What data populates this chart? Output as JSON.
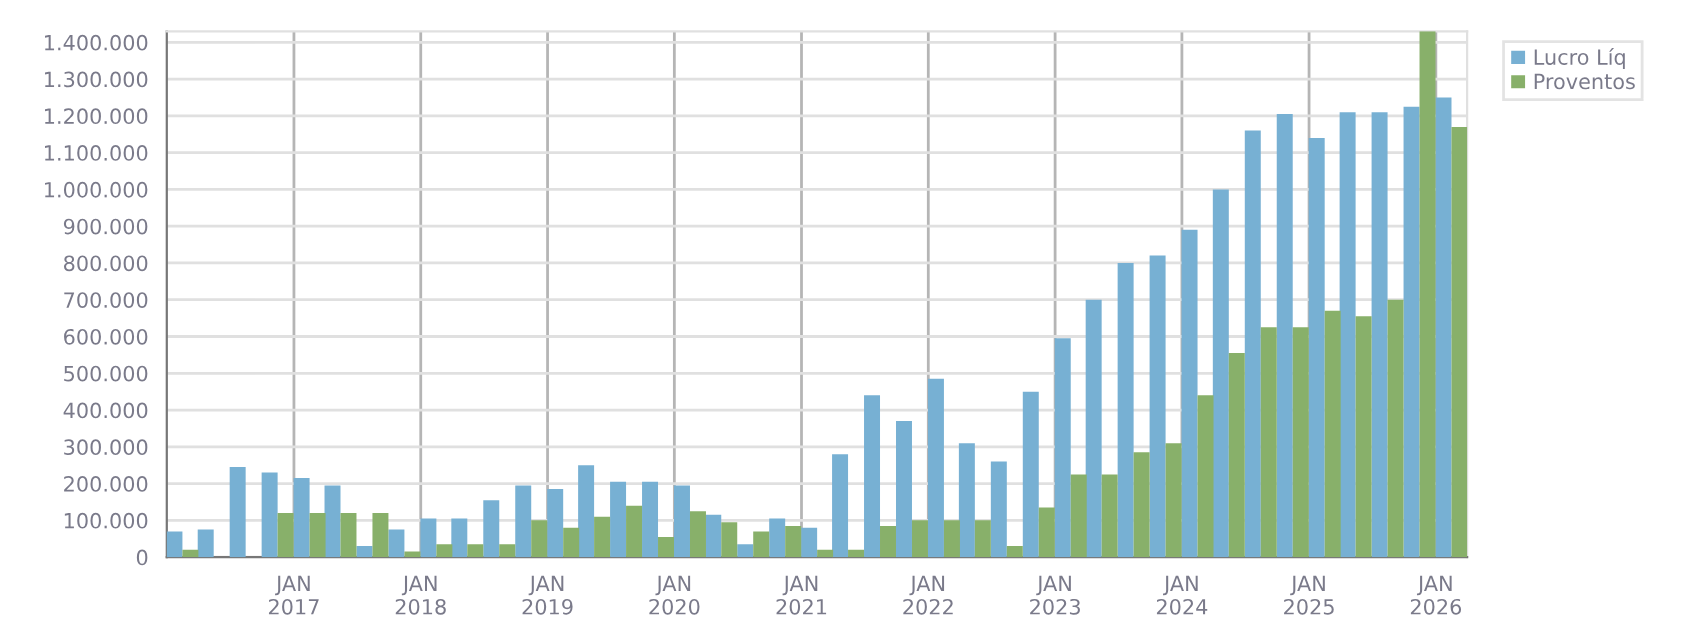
{
  "chart_data": {
    "type": "bar",
    "x": [
      "2016-02-15",
      "2016-05-15",
      "2016-08-15",
      "2016-11-15",
      "2017-02-15",
      "2017-05-15",
      "2017-08-15",
      "2017-11-15",
      "2018-02-15",
      "2018-05-15",
      "2018-08-15",
      "2018-11-15",
      "2019-02-15",
      "2019-05-15",
      "2019-08-15",
      "2019-11-15",
      "2020-02-15",
      "2020-05-15",
      "2020-08-15",
      "2020-11-15",
      "2021-02-15",
      "2021-05-15",
      "2021-08-15",
      "2021-11-15",
      "2022-02-15",
      "2022-05-15",
      "2022-08-15",
      "2022-11-15",
      "2023-02-15",
      "2023-05-15",
      "2023-08-15",
      "2023-11-15",
      "2024-02-15",
      "2024-05-15",
      "2024-08-15",
      "2024-11-15",
      "2025-02-15",
      "2025-05-15",
      "2025-08-15",
      "2025-11-15",
      "2026-02-15"
    ],
    "series": [
      {
        "name": "Lucro Líq",
        "color": "#77b0d3",
        "values": [
          70000,
          75000,
          245000,
          230000,
          215000,
          195000,
          30000,
          75000,
          105000,
          105000,
          155000,
          195000,
          185000,
          250000,
          205000,
          205000,
          195000,
          115000,
          35000,
          105000,
          80000,
          280000,
          440000,
          370000,
          485000,
          310000,
          260000,
          450000,
          595000,
          700000,
          800000,
          820000,
          890000,
          1000000,
          1160000,
          1205000,
          1140000,
          1210000,
          1210000,
          1225000,
          1250000
        ]
      },
      {
        "name": "Proventos",
        "color": "#88b06a",
        "values": [
          20000,
          null,
          null,
          120000,
          120000,
          120000,
          120000,
          15000,
          35000,
          35000,
          35000,
          100000,
          80000,
          110000,
          140000,
          55000,
          125000,
          95000,
          70000,
          85000,
          20000,
          20000,
          85000,
          100000,
          100000,
          100000,
          30000,
          135000,
          225000,
          225000,
          285000,
          310000,
          440000,
          555000,
          625000,
          625000,
          670000,
          655000,
          700000,
          1430000,
          1170000
        ]
      }
    ],
    "xlim": [
      "2016-01-01",
      "2026-04-01"
    ],
    "xticks": [
      {
        "value": "2017-01-01",
        "label": "JAN\n2017"
      },
      {
        "value": "2018-01-01",
        "label": "JAN\n2018"
      },
      {
        "value": "2019-01-01",
        "label": "JAN\n2019"
      },
      {
        "value": "2020-01-01",
        "label": "JAN\n2020"
      },
      {
        "value": "2021-01-01",
        "label": "JAN\n2021"
      },
      {
        "value": "2022-01-01",
        "label": "JAN\n2022"
      },
      {
        "value": "2023-01-01",
        "label": "JAN\n2023"
      },
      {
        "value": "2024-01-01",
        "label": "JAN\n2024"
      },
      {
        "value": "2025-01-01",
        "label": "JAN\n2025"
      },
      {
        "value": "2026-01-01",
        "label": "JAN\n2026"
      }
    ],
    "ylim": [
      0,
      1430000
    ],
    "yticks": [
      {
        "value": 0,
        "label": "0"
      },
      {
        "value": 100000,
        "label": "100.000"
      },
      {
        "value": 200000,
        "label": "200.000"
      },
      {
        "value": 300000,
        "label": "300.000"
      },
      {
        "value": 400000,
        "label": "400.000"
      },
      {
        "value": 500000,
        "label": "500.000"
      },
      {
        "value": 600000,
        "label": "600.000"
      },
      {
        "value": 700000,
        "label": "700.000"
      },
      {
        "value": 800000,
        "label": "800.000"
      },
      {
        "value": 900000,
        "label": "900.000"
      },
      {
        "value": 1000000,
        "label": "1.000.000"
      },
      {
        "value": 1100000,
        "label": "1.100.000"
      },
      {
        "value": 1200000,
        "label": "1.200.000"
      },
      {
        "value": 1300000,
        "label": "1.300.000"
      },
      {
        "value": 1400000,
        "label": "1.400.000"
      }
    ],
    "grid": true,
    "legend": "top right"
  }
}
